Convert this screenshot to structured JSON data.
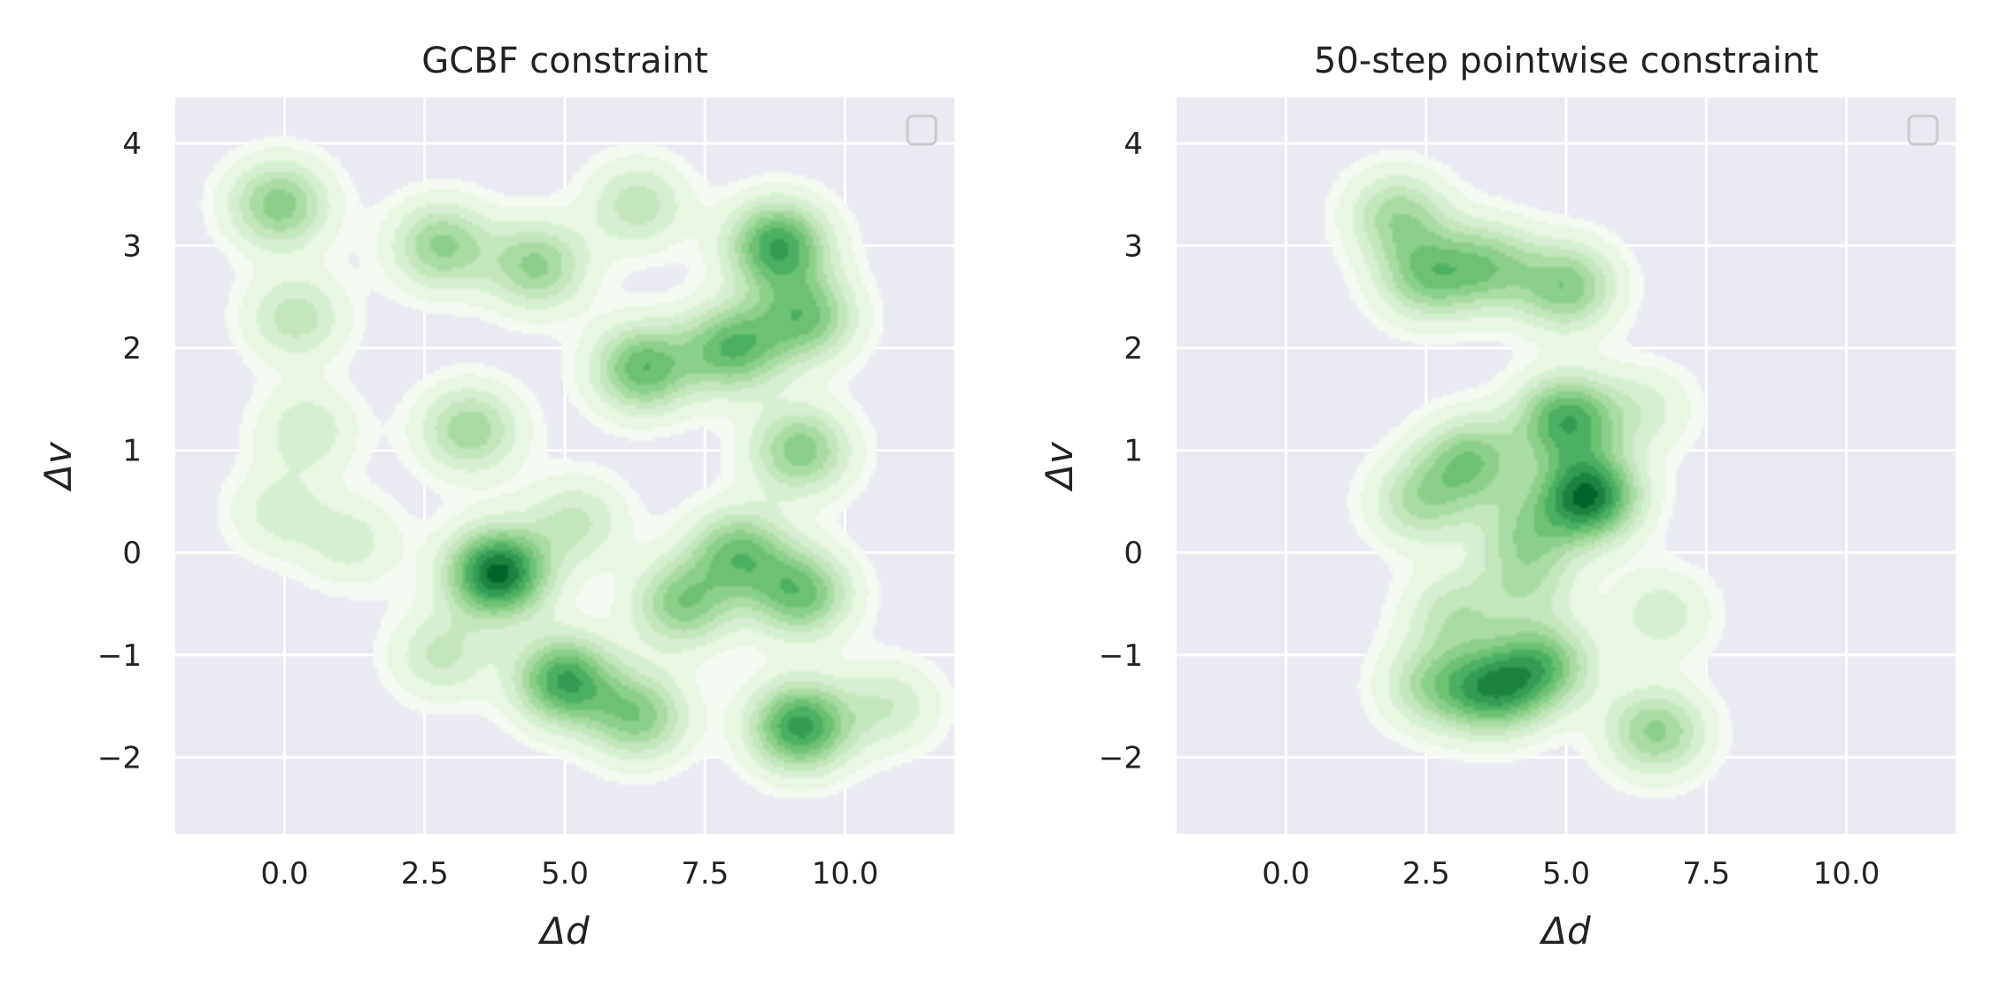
{
  "chart_data": [
    {
      "type": "heatmap",
      "kind": "2d-kde",
      "title": "GCBF constraint",
      "xlabel": "Δd",
      "ylabel": "Δv",
      "xlim": [
        -1.95,
        11.95
      ],
      "ylim": [
        -2.75,
        4.45
      ],
      "xticks": [
        "0.0",
        "2.5",
        "5.0",
        "7.5",
        "10.0"
      ],
      "xtick_values": [
        0,
        2.5,
        5,
        7.5,
        10
      ],
      "yticks": [
        "−2",
        "−1",
        "0",
        "1",
        "2",
        "3",
        "4"
      ],
      "ytick_values": [
        -2,
        -1,
        0,
        1,
        2,
        3,
        4
      ],
      "colormap": "Greens",
      "background": "#eaeaf2",
      "grid": true,
      "legend": "top-right (empty)",
      "density_centers": [
        {
          "x": -0.1,
          "y": 3.4,
          "w": 0.7
        },
        {
          "x": 0.2,
          "y": 2.3,
          "w": 0.45
        },
        {
          "x": 0.4,
          "y": 1.2,
          "w": 0.35
        },
        {
          "x": -0.1,
          "y": 0.4,
          "w": 0.3
        },
        {
          "x": 1.2,
          "y": 0.1,
          "w": 0.3
        },
        {
          "x": 2.8,
          "y": 3.0,
          "w": 0.65
        },
        {
          "x": 4.5,
          "y": 2.8,
          "w": 0.65
        },
        {
          "x": 3.3,
          "y": 1.2,
          "w": 0.6
        },
        {
          "x": 6.4,
          "y": 1.8,
          "w": 0.85
        },
        {
          "x": 8.0,
          "y": 2.0,
          "w": 0.85
        },
        {
          "x": 8.8,
          "y": 3.0,
          "w": 1.0
        },
        {
          "x": 9.3,
          "y": 2.3,
          "w": 0.75
        },
        {
          "x": 9.2,
          "y": 1.0,
          "w": 0.7
        },
        {
          "x": 6.3,
          "y": 3.4,
          "w": 0.45
        },
        {
          "x": 3.8,
          "y": -0.2,
          "w": 1.3
        },
        {
          "x": 5.0,
          "y": -1.25,
          "w": 1.0
        },
        {
          "x": 7.1,
          "y": -0.5,
          "w": 0.7
        },
        {
          "x": 8.1,
          "y": 0.0,
          "w": 0.75
        },
        {
          "x": 9.2,
          "y": -0.4,
          "w": 0.8
        },
        {
          "x": 9.2,
          "y": -1.7,
          "w": 1.05
        },
        {
          "x": 6.3,
          "y": -1.6,
          "w": 0.7
        },
        {
          "x": 2.8,
          "y": -1.0,
          "w": 0.4
        },
        {
          "x": 10.8,
          "y": -1.5,
          "w": 0.35
        },
        {
          "x": 5.2,
          "y": 0.3,
          "w": 0.4
        }
      ]
    },
    {
      "type": "heatmap",
      "kind": "2d-kde",
      "title": "50-step pointwise constraint",
      "xlabel": "Δd",
      "ylabel": "Δv",
      "xlim": [
        -1.95,
        11.95
      ],
      "ylim": [
        -2.75,
        4.45
      ],
      "xticks": [
        "0.0",
        "2.5",
        "5.0",
        "7.5",
        "10.0"
      ],
      "xtick_values": [
        0,
        2.5,
        5,
        7.5,
        10
      ],
      "yticks": [
        "−2",
        "−1",
        "0",
        "1",
        "2",
        "3",
        "4"
      ],
      "ytick_values": [
        -2,
        -1,
        0,
        1,
        2,
        3,
        4
      ],
      "colormap": "Greens",
      "background": "#eaeaf2",
      "grid": true,
      "legend": "top-right (empty)",
      "density_centers": [
        {
          "x": 2.0,
          "y": 3.3,
          "w": 0.6
        },
        {
          "x": 2.5,
          "y": 2.7,
          "w": 0.7
        },
        {
          "x": 3.6,
          "y": 2.8,
          "w": 0.65
        },
        {
          "x": 5.0,
          "y": 2.6,
          "w": 0.75
        },
        {
          "x": 5.0,
          "y": 1.3,
          "w": 1.0
        },
        {
          "x": 5.4,
          "y": 0.55,
          "w": 1.3
        },
        {
          "x": 3.3,
          "y": 0.9,
          "w": 0.75
        },
        {
          "x": 2.4,
          "y": 0.5,
          "w": 0.55
        },
        {
          "x": 4.3,
          "y": 0.2,
          "w": 0.5
        },
        {
          "x": 3.7,
          "y": -1.35,
          "w": 0.95
        },
        {
          "x": 4.6,
          "y": -1.1,
          "w": 0.8
        },
        {
          "x": 2.6,
          "y": -1.3,
          "w": 0.55
        },
        {
          "x": 3.0,
          "y": -0.6,
          "w": 0.45
        },
        {
          "x": 6.6,
          "y": -1.75,
          "w": 0.7
        },
        {
          "x": 6.7,
          "y": -0.6,
          "w": 0.35
        },
        {
          "x": 6.4,
          "y": 1.4,
          "w": 0.3
        },
        {
          "x": 4.3,
          "y": -0.3,
          "w": 0.4
        }
      ]
    }
  ]
}
